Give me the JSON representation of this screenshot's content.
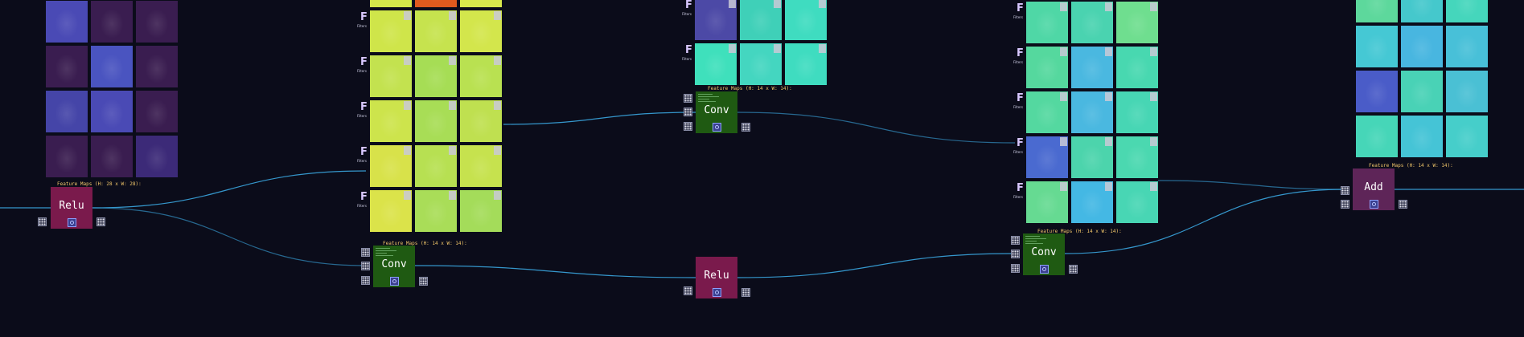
{
  "app": {
    "background": "#0b0c1a",
    "edge_color": "#3aa6e0"
  },
  "filter_label": "F",
  "filter_sub": "Filters",
  "nodes": [
    {
      "id": "relu1",
      "label": "Relu",
      "kind": "relu",
      "color": "#7a1a4c",
      "caption": "Feature Maps (H: 28 x W: 28):"
    },
    {
      "id": "conv1",
      "label": "Conv",
      "kind": "conv",
      "color": "#1f5a12",
      "caption": "Feature Maps (H: 14 x W: 14):"
    },
    {
      "id": "conv2",
      "label": "Conv",
      "kind": "conv",
      "color": "#1f5a12",
      "caption": "Feature Maps (H: 14 x W: 14):"
    },
    {
      "id": "relu2",
      "label": "Relu",
      "kind": "relu",
      "color": "#7a1a4c",
      "caption": ""
    },
    {
      "id": "conv3",
      "label": "Conv",
      "kind": "conv",
      "color": "#1f5a12",
      "caption": "Feature Maps (H: 14 x W: 14):"
    },
    {
      "id": "add1",
      "label": "Add",
      "kind": "add",
      "color": "#5e2558",
      "caption": "Feature Maps (H: 14 x W: 14):"
    }
  ],
  "feature_maps": [
    {
      "id": "fm_relu1",
      "rows": [
        [
          "#4a4ab5",
          "#3a1d50",
          "#3a1d50"
        ],
        [
          "#3a1d50",
          "#4a54c0",
          "#3a1d50"
        ],
        [
          "#4545a8",
          "#4a4ab5",
          "#3a1d50"
        ],
        [
          "#3a1d50",
          "#3a1d50",
          "#3c2a78"
        ]
      ]
    },
    {
      "id": "fm_conv1",
      "rows": [
        [
          "#d5e84a",
          "#e05a1e",
          "#d8e84c"
        ],
        [
          "#cfe54a",
          "#c6e34e",
          "#d3e64c"
        ],
        [
          "#c3e24f",
          "#a6dd55",
          "#b9e151"
        ],
        [
          "#cde44c",
          "#a8dd56",
          "#bfe050"
        ],
        [
          "#d8e24a",
          "#b7e052",
          "#c6e24e"
        ],
        [
          "#dbe34a",
          "#a9dd58",
          "#a4dc5a"
        ]
      ]
    },
    {
      "id": "fm_conv2",
      "rows": [
        [
          "#4c49a6",
          "#3fd0b8",
          "#3fdcc0"
        ],
        [
          "#3fe0bc",
          "#44d6c0",
          "#3fdcc0"
        ]
      ]
    },
    {
      "id": "fm_conv3",
      "rows": [
        [
          "#4fd7a6",
          "#4ad3b0",
          "#6fde8f"
        ],
        [
          "#55d89e",
          "#4ab8e0",
          "#48d8b0"
        ],
        [
          "#54d8a0",
          "#4ab8e0",
          "#47d6b4"
        ],
        [
          "#4a6ad0",
          "#4cd4ac",
          "#4bd8b0"
        ],
        [
          "#66da92",
          "#44b8e4",
          "#48d6b4"
        ]
      ]
    },
    {
      "id": "fm_add1",
      "rows": [
        [
          "#5dd89c",
          "#45c8cc",
          "#45d6bc"
        ],
        [
          "#45c8d4",
          "#48b6e0",
          "#48c0d8"
        ],
        [
          "#4a5cc8",
          "#49d2b6",
          "#4ac0d4"
        ],
        [
          "#46d6b8",
          "#45c4d6",
          "#46ceca"
        ]
      ]
    }
  ]
}
